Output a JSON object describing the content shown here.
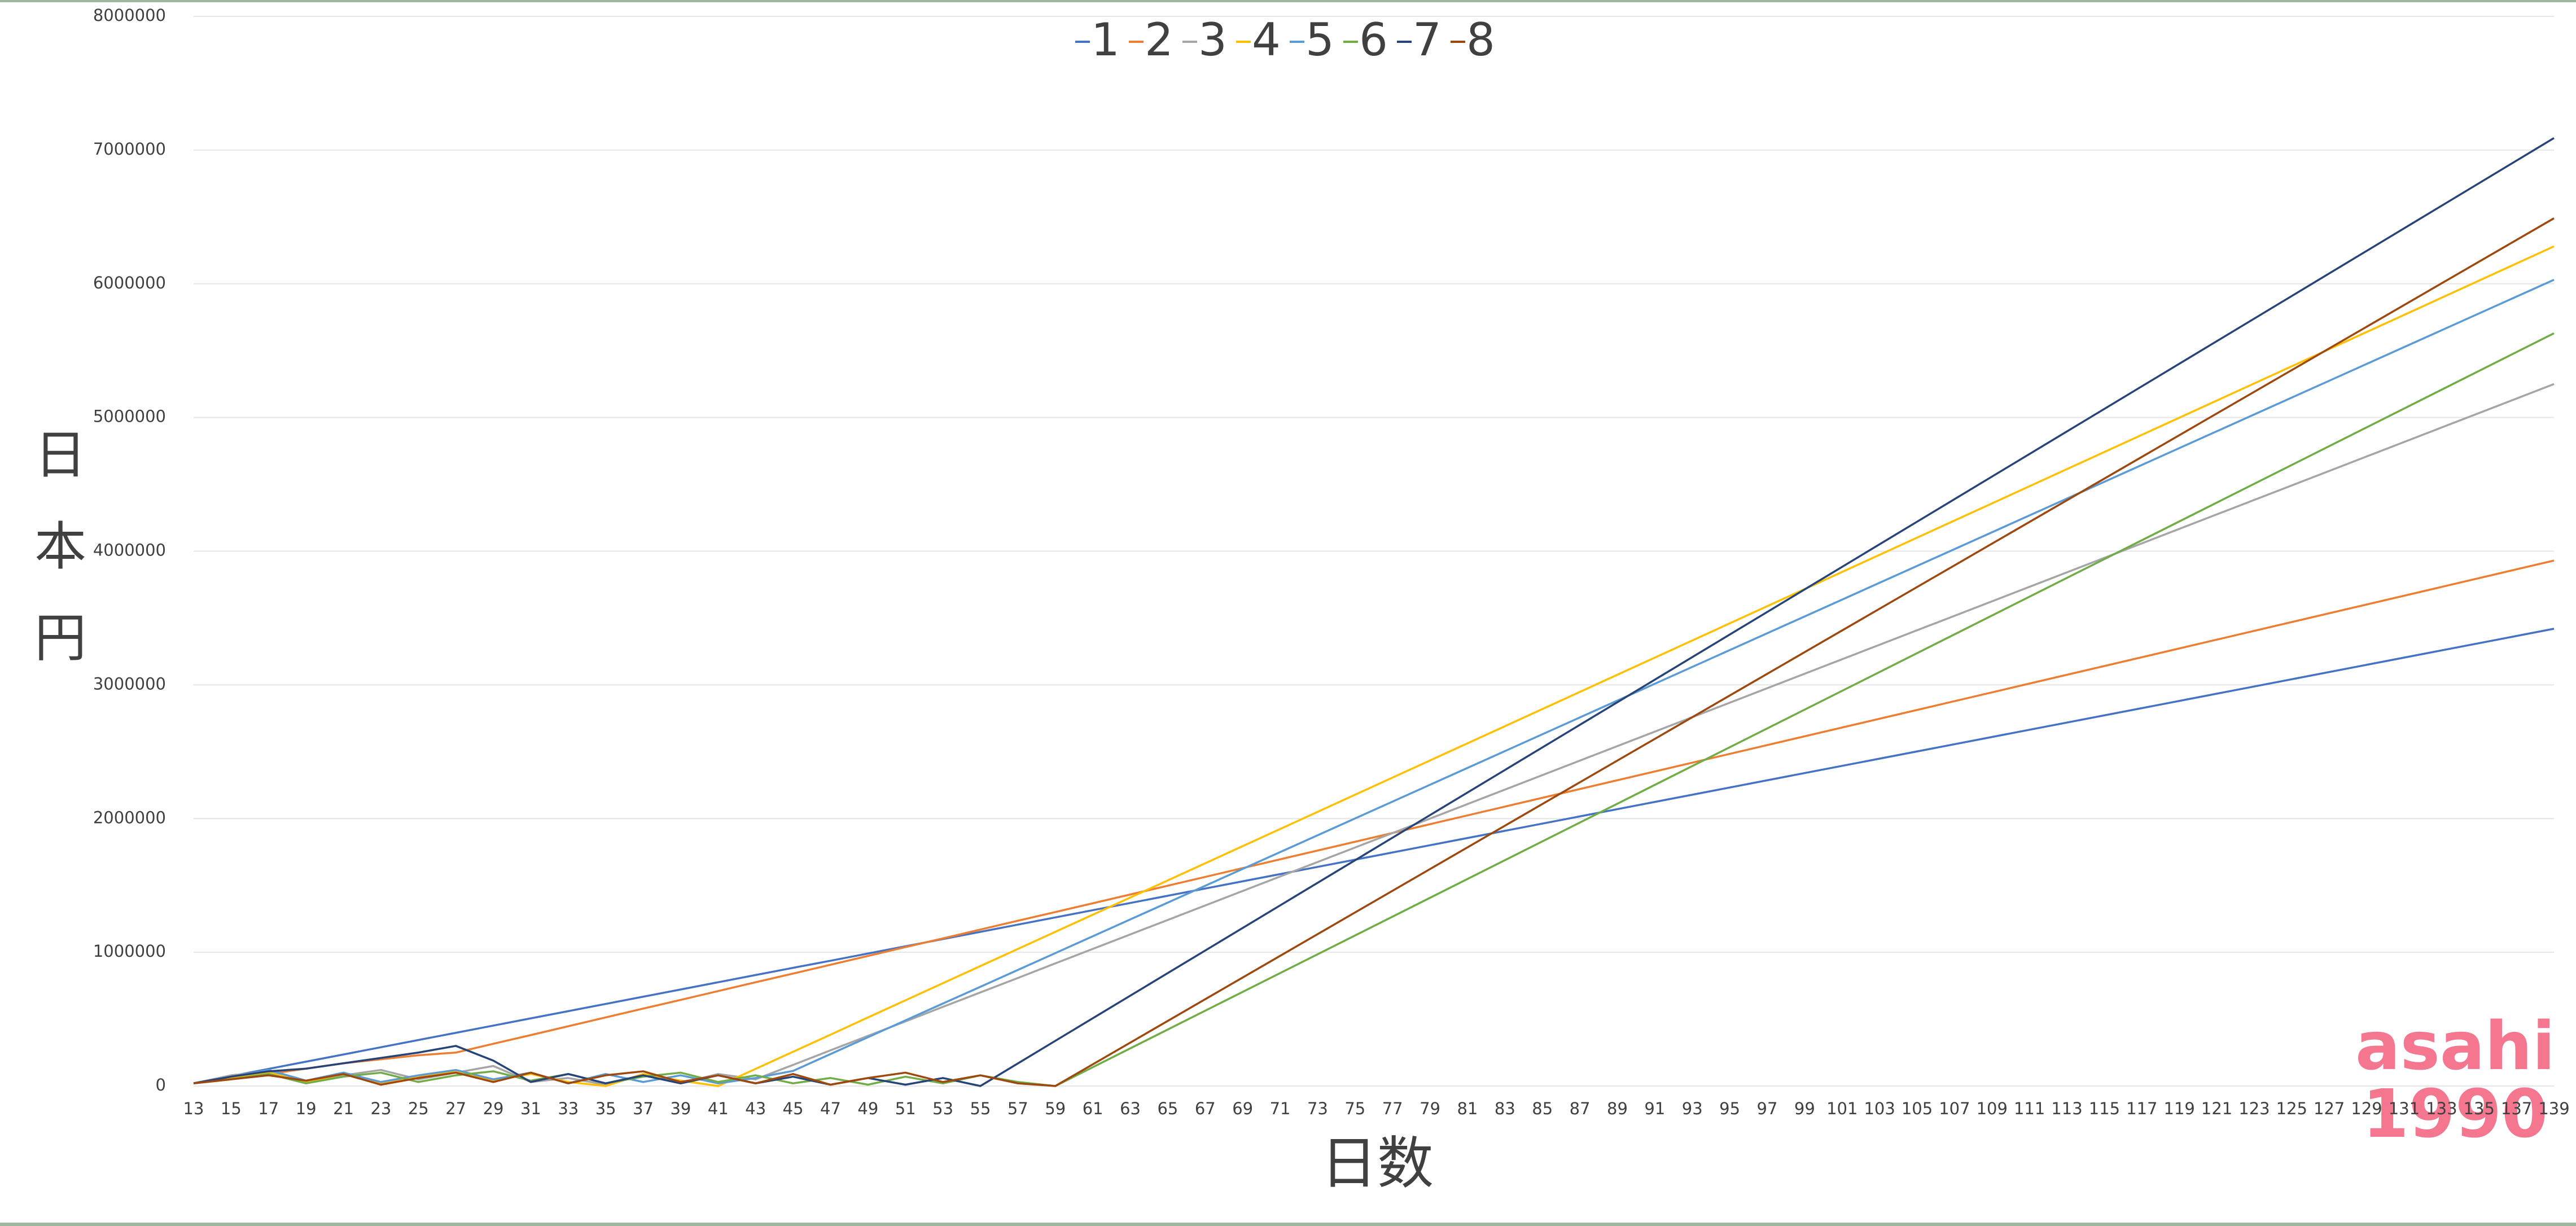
{
  "chart_data": {
    "type": "line",
    "x_label": "日数",
    "y_label": "日本円",
    "annotations": [
      "asahi",
      "1990"
    ],
    "x": [
      13,
      15,
      17,
      19,
      21,
      23,
      25,
      27,
      29,
      31,
      33,
      35,
      37,
      39,
      41,
      43,
      45,
      47,
      49,
      51,
      53,
      55,
      57,
      59,
      139
    ],
    "xlim": [
      13,
      139
    ],
    "xticks": [
      13,
      15,
      17,
      19,
      21,
      23,
      25,
      27,
      29,
      31,
      33,
      35,
      37,
      39,
      41,
      43,
      45,
      47,
      49,
      51,
      53,
      55,
      57,
      59,
      61,
      63,
      65,
      67,
      69,
      71,
      73,
      75,
      77,
      79,
      81,
      83,
      85,
      87,
      89,
      91,
      93,
      95,
      97,
      99,
      101,
      103,
      105,
      107,
      109,
      111,
      113,
      115,
      117,
      119,
      121,
      123,
      125,
      127,
      129,
      131,
      133,
      135,
      137,
      139
    ],
    "ylim": [
      0,
      8000000
    ],
    "yticks": [
      0,
      1000000,
      2000000,
      3000000,
      4000000,
      5000000,
      6000000,
      7000000,
      8000000
    ],
    "grid": true,
    "legend": "top",
    "series": [
      {
        "name": "1",
        "color": "#4472c4",
        "values": [
          20000,
          74000,
          128000,
          182000,
          236000,
          290000,
          344000,
          398000,
          452000,
          506000,
          560000,
          614000,
          668000,
          722000,
          776000,
          830000,
          884000,
          937000,
          991000,
          1045000,
          1099000,
          1153000,
          1207000,
          1261000,
          3420000
        ]
      },
      {
        "name": "2",
        "color": "#ed7d31",
        "values": [
          20000,
          60000,
          90000,
          130000,
          170000,
          200000,
          230000,
          250000,
          316000,
          381000,
          447000,
          513000,
          579000,
          644000,
          710000,
          776000,
          841000,
          907000,
          973000,
          1039000,
          1104000,
          1170000,
          1236000,
          1301000,
          3930000
        ]
      },
      {
        "name": "3",
        "color": "#a5a5a5",
        "values": [
          20000,
          80000,
          110000,
          20000,
          80000,
          120000,
          50000,
          100000,
          150000,
          30000,
          60000,
          10000,
          80000,
          20000,
          90000,
          50000,
          158000,
          267000,
          375000,
          483000,
          592000,
          700000,
          808000,
          917000,
          5250000
        ]
      },
      {
        "name": "4",
        "color": "#ffc000",
        "values": [
          20000,
          60000,
          100000,
          30000,
          90000,
          20000,
          70000,
          110000,
          40000,
          90000,
          30000,
          0,
          90000,
          40000,
          0,
          128000,
          256000,
          384000,
          513000,
          641000,
          769000,
          897000,
          1025000,
          1153000,
          6280000
        ]
      },
      {
        "name": "5",
        "color": "#5b9bd5",
        "values": [
          20000,
          70000,
          120000,
          40000,
          100000,
          30000,
          80000,
          120000,
          50000,
          100000,
          20000,
          90000,
          30000,
          80000,
          20000,
          60000,
          113000,
          239000,
          365000,
          491000,
          617000,
          742000,
          868000,
          994000,
          6030000
        ]
      },
      {
        "name": "6",
        "color": "#70ad47",
        "values": [
          20000,
          50000,
          90000,
          20000,
          70000,
          100000,
          30000,
          80000,
          110000,
          40000,
          90000,
          20000,
          70000,
          100000,
          30000,
          80000,
          20000,
          60000,
          10000,
          70000,
          20000,
          80000,
          30000,
          0,
          5630000
        ]
      },
      {
        "name": "7",
        "color": "#264478",
        "values": [
          20000,
          70000,
          110000,
          130000,
          170000,
          210000,
          250000,
          300000,
          190000,
          30000,
          90000,
          20000,
          80000,
          20000,
          80000,
          20000,
          70000,
          10000,
          60000,
          10000,
          60000,
          0,
          169000,
          338000,
          7090000
        ]
      },
      {
        "name": "8",
        "color": "#9e480e",
        "values": [
          20000,
          50000,
          80000,
          40000,
          90000,
          10000,
          60000,
          100000,
          30000,
          100000,
          20000,
          80000,
          110000,
          30000,
          80000,
          20000,
          90000,
          10000,
          60000,
          100000,
          30000,
          80000,
          20000,
          0,
          6490000
        ]
      }
    ]
  }
}
